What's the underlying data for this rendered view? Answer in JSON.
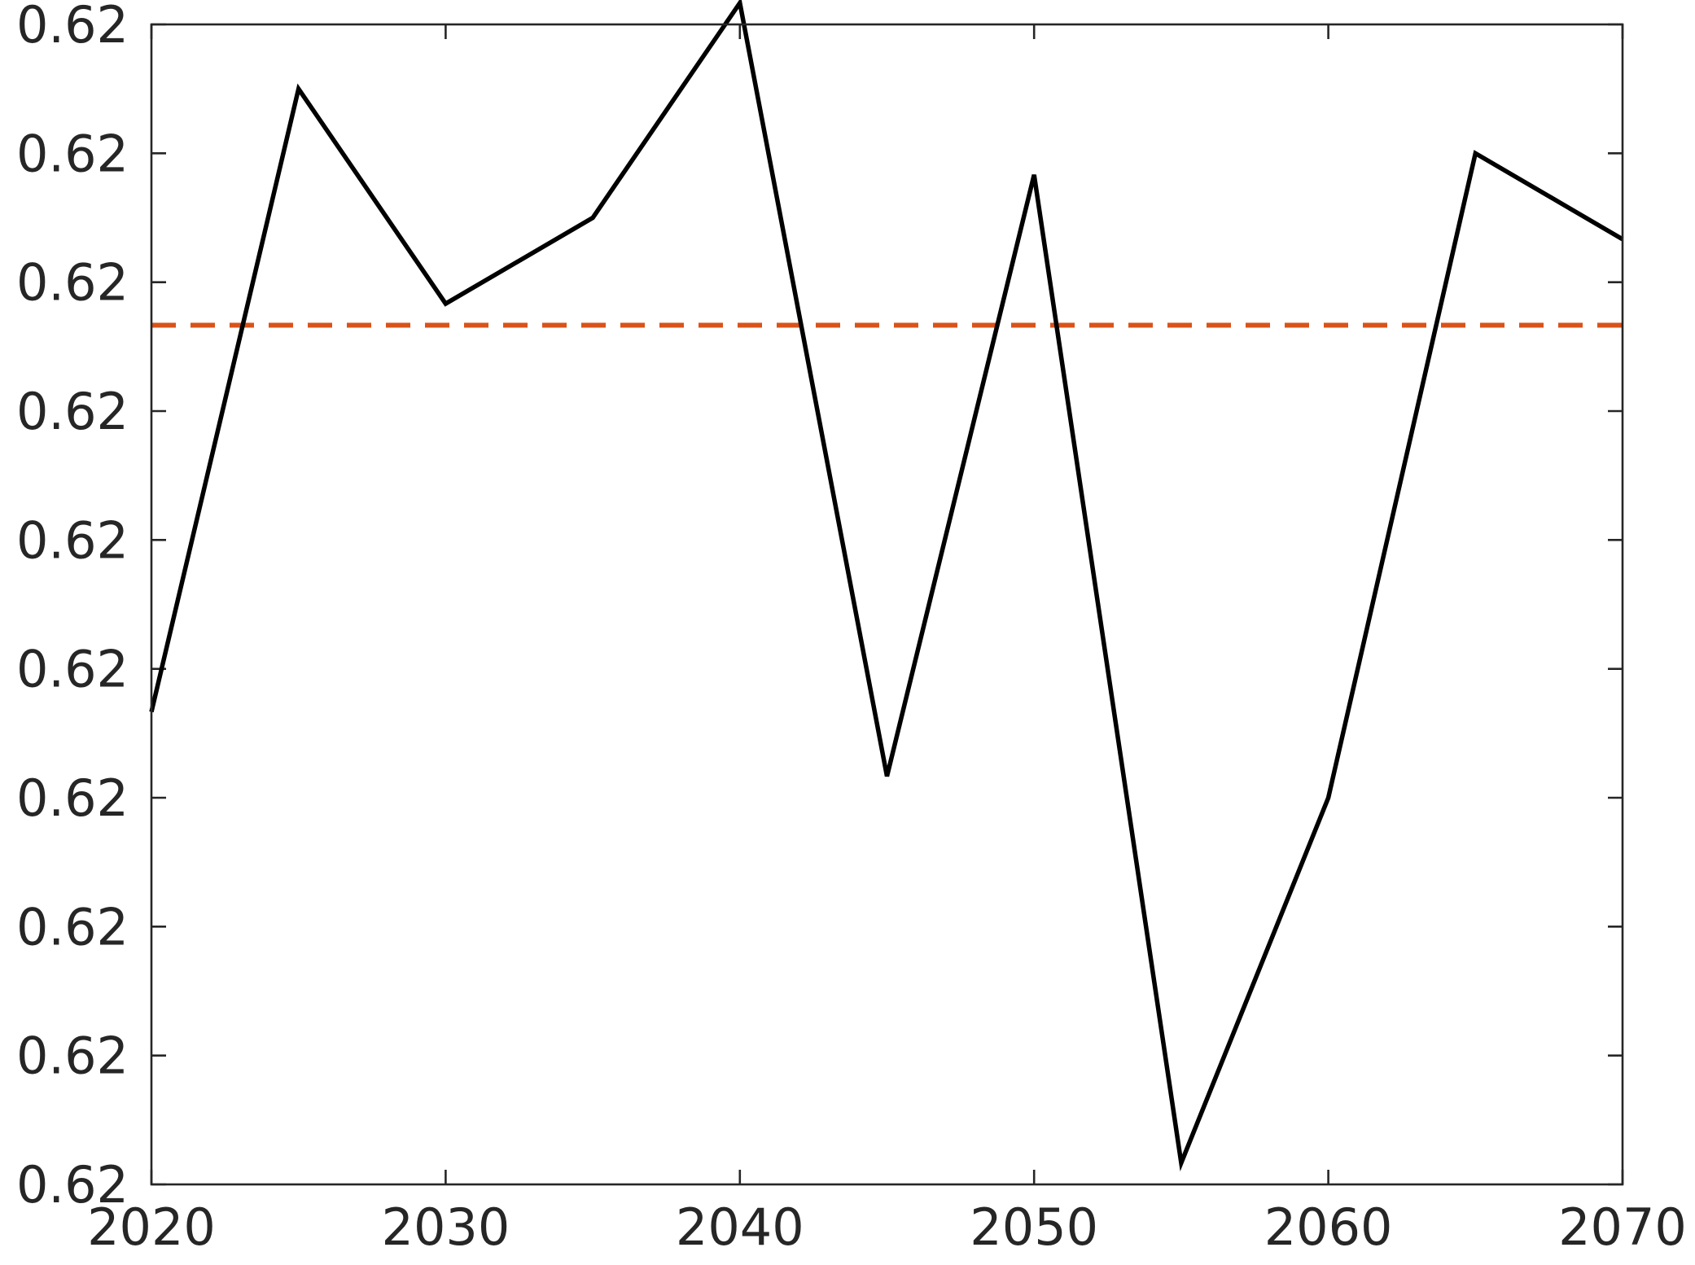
{
  "chart_data": {
    "type": "line",
    "x": [
      2020,
      2025,
      2030,
      2035,
      2040,
      2045,
      2050,
      2055,
      2060,
      2065,
      2070
    ],
    "series": [
      {
        "values": [
          0.6196,
          0.6225,
          0.6215,
          0.6219,
          0.6229,
          0.6193,
          0.6221,
          0.6175,
          0.6192,
          0.6222,
          0.6218
        ],
        "color": "#000000",
        "style": "solid"
      }
    ],
    "reference_line": {
      "y": 0.6214,
      "color": "#d95319",
      "style": "dashed"
    },
    "xlim": [
      2020,
      2070
    ],
    "ylim": [
      0.6174,
      0.6228
    ],
    "xticks": [
      2020,
      2030,
      2040,
      2050,
      2060,
      2070
    ],
    "xtick_labels": [
      "2020",
      "2030",
      "2040",
      "2050",
      "2060",
      "2070"
    ],
    "yticks": [
      0.6174,
      0.618,
      0.6186,
      0.6192,
      0.6198,
      0.6204,
      0.621,
      0.6216,
      0.6222,
      0.6228
    ],
    "ytick_labels": [
      "0.62",
      "0.62",
      "0.62",
      "0.62",
      "0.62",
      "0.62",
      "0.62",
      "0.62",
      "0.62",
      "0.62"
    ],
    "title": "",
    "xlabel": "",
    "ylabel": "",
    "grid": false,
    "box": true
  }
}
